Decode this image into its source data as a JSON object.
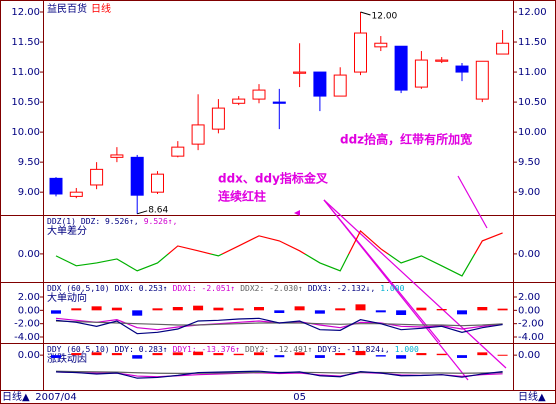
{
  "chart_data": [
    {
      "type": "candlestick",
      "title": "益民百货",
      "subtitle": "日线",
      "categories": [
        "2007/04",
        null,
        null,
        null,
        null,
        null,
        null,
        null,
        null,
        null,
        null,
        null,
        "05",
        null,
        null,
        null,
        null,
        null,
        null,
        null,
        null,
        null,
        null
      ],
      "open": [
        9.23,
        8.93,
        9.12,
        9.58,
        9.58,
        9.0,
        9.6,
        9.8,
        10.05,
        10.48,
        10.55,
        10.5,
        10.98,
        11.0,
        10.6,
        11.0,
        11.42,
        11.43,
        10.75,
        11.18,
        11.1,
        10.55,
        11.3
      ],
      "high": [
        9.25,
        9.07,
        9.5,
        9.75,
        9.62,
        9.35,
        9.85,
        10.63,
        10.55,
        10.6,
        10.8,
        10.72,
        11.48,
        11.0,
        11.08,
        12.0,
        11.6,
        11.43,
        11.35,
        11.25,
        11.15,
        11.18,
        11.7
      ],
      "low": [
        8.93,
        8.9,
        9.05,
        9.5,
        8.64,
        8.97,
        9.58,
        9.7,
        9.98,
        10.45,
        10.48,
        10.05,
        10.75,
        10.35,
        10.6,
        10.95,
        11.35,
        10.65,
        10.72,
        11.15,
        10.85,
        10.5,
        11.3
      ],
      "close": [
        8.97,
        9.0,
        9.38,
        9.62,
        8.95,
        9.3,
        9.75,
        10.12,
        10.4,
        10.55,
        10.7,
        10.48,
        11.0,
        10.6,
        10.95,
        11.65,
        11.48,
        10.7,
        11.2,
        11.2,
        11.0,
        11.18,
        11.48
      ],
      "up_color": "#ff0000",
      "down_color": "#0000ff",
      "high_label": "12.00",
      "low_label": "8.64",
      "ylim": [
        8.62,
        12.15
      ],
      "yticks": [
        {
          "value": 9,
          "label": "9.00"
        },
        {
          "value": 9.5,
          "label": "9.50"
        },
        {
          "value": 10,
          "label": "10.00"
        },
        {
          "value": 10.5,
          "label": "10.50"
        },
        {
          "value": 11,
          "label": "11.00"
        },
        {
          "value": 11.5,
          "label": "11.50"
        },
        {
          "value": 12,
          "label": "12.00"
        }
      ],
      "annotations": [
        "ddz抬高，红带有所加宽",
        "ddx、ddy指标金叉",
        "连续红柱"
      ]
    },
    {
      "type": "line",
      "subtitle": "大单差分",
      "header": [
        {
          "text": "DDZ(1)",
          "color": "#000080"
        },
        {
          "text": "DDZ: 9.526↑,",
          "color": "#000080"
        },
        {
          "text": "9.526↑,",
          "color": "#d000d0"
        }
      ],
      "series": [
        {
          "color": "#ff0000",
          "color_negative": "#00b000",
          "values": [
            -0.9,
            -5.4,
            -4.1,
            -2.3,
            -7.7,
            -4.1,
            3.6,
            1.4,
            -0.9,
            3.6,
            8.2,
            5.9,
            1.4,
            -4.1,
            -7.7,
            10.4,
            2.3,
            -4.1,
            -0.9,
            -5.4,
            -10,
            5.9,
            9.526
          ]
        }
      ],
      "ylim": [
        -12.3,
        17.2
      ],
      "yticks": [
        {
          "value": 0,
          "label": "0.00"
        }
      ]
    },
    {
      "type": "combo",
      "subtitle": "大单动向",
      "header": [
        {
          "text": "DDX (60,5,10)",
          "color": "#000080"
        },
        {
          "text": "DDX: 0.253↑",
          "color": "#000080"
        },
        {
          "text": "DDX1: -2.051↑",
          "color": "#d000d0"
        },
        {
          "text": "DDX2: -2.030↑",
          "color": "#606060"
        },
        {
          "text": "DDX3: -2.132↓,",
          "color": "#000080"
        },
        {
          "text": "1.000",
          "color": "#00b0d0"
        }
      ],
      "bars": {
        "up_color": "#ff0000",
        "down_color": "#0000ff",
        "values": [
          -0.5,
          0.3,
          0.6,
          0.4,
          -0.8,
          0.3,
          0.5,
          0.7,
          0.4,
          0.3,
          0.5,
          -0.4,
          0.6,
          -0.5,
          0.3,
          0.9,
          -0.3,
          -0.7,
          0.4,
          0.2,
          -0.6,
          0.5,
          0.253
        ]
      },
      "series": [
        {
          "color": "#d000d0",
          "values": [
            -1.2,
            -1.5,
            -1.8,
            -1.4,
            -2.6,
            -2.9,
            -2.5,
            -2.2,
            -2.0,
            -1.8,
            -1.6,
            -1.9,
            -1.7,
            -2.2,
            -2.6,
            -1.8,
            -1.9,
            -2.4,
            -2.5,
            -2.3,
            -2.8,
            -2.4,
            -2.051
          ]
        },
        {
          "color": "#606060",
          "values": [
            -1.6,
            -1.7,
            -1.8,
            -1.9,
            -2.0,
            -2.1,
            -2.2,
            -2.2,
            -2.1,
            -2.0,
            -1.9,
            -1.9,
            -1.9,
            -2.0,
            -2.1,
            -2.0,
            -2.0,
            -2.1,
            -2.2,
            -2.2,
            -2.3,
            -2.2,
            -2.03
          ]
        },
        {
          "color": "#000080",
          "values": [
            -1.5,
            -1.8,
            -2.4,
            -1.6,
            -3.5,
            -3.3,
            -2.8,
            -1.6,
            -1.5,
            -1.3,
            -1.2,
            -1.9,
            -1.6,
            -2.9,
            -3.0,
            -1.4,
            -2.0,
            -2.9,
            -2.7,
            -2.4,
            -3.3,
            -2.6,
            -2.132
          ]
        }
      ],
      "ylim": [
        -4.75,
        4.1
      ],
      "yticks": [
        {
          "value": 2,
          "label": "2.00"
        },
        {
          "value": 0,
          "label": "0.00"
        },
        {
          "value": -2,
          "label": "-2.00"
        },
        {
          "value": -4,
          "label": "-4.00"
        }
      ]
    },
    {
      "type": "combo",
      "subtitle": "涨跌动因",
      "header": [
        {
          "text": "DDY (60,5,10)",
          "color": "#000080"
        },
        {
          "text": "DDY: 0.283↑",
          "color": "#000080"
        },
        {
          "text": "DDY1: -13.376↑",
          "color": "#d000d0"
        },
        {
          "text": "DDY2: -12.491↑",
          "color": "#606060"
        },
        {
          "text": "DDY3: -11.824↓,",
          "color": "#000080"
        },
        {
          "text": "1.000",
          "color": "#00b0d0"
        }
      ],
      "bars": {
        "up_color": "#ff0000",
        "down_color": "#0000ff",
        "values": [
          -2,
          1.5,
          2,
          1.5,
          -2.5,
          1.5,
          2,
          2.5,
          1.5,
          1,
          2,
          -1.5,
          2,
          -2,
          1.5,
          3,
          -1,
          -2.5,
          1.5,
          1,
          -2,
          2,
          0.283
        ]
      },
      "series": [
        {
          "color": "#d000d0",
          "values": [
            -12,
            -12.5,
            -13,
            -12.8,
            -15,
            -15.5,
            -14.8,
            -14,
            -13.5,
            -13,
            -12.6,
            -13.2,
            -12.8,
            -14.2,
            -15,
            -12.5,
            -13,
            -14.2,
            -14.5,
            -14,
            -15.2,
            -14,
            -13.376
          ]
        },
        {
          "color": "#606060",
          "values": [
            -11.5,
            -11.8,
            -12,
            -12.2,
            -12.6,
            -13,
            -13.1,
            -13,
            -12.8,
            -12.6,
            -12.4,
            -12.4,
            -12.3,
            -12.5,
            -12.8,
            -12.4,
            -12.4,
            -12.6,
            -12.8,
            -12.8,
            -13,
            -12.8,
            -12.491
          ]
        },
        {
          "color": "#000080",
          "values": [
            -12,
            -12.5,
            -13.5,
            -12.8,
            -16.5,
            -16,
            -14.5,
            -12.5,
            -12.2,
            -11.8,
            -11.5,
            -12.6,
            -12,
            -14.8,
            -15.5,
            -11.8,
            -12.8,
            -14.8,
            -14.6,
            -14,
            -15.8,
            -13.5,
            -11.824
          ]
        }
      ],
      "ylim": [
        -25,
        8
      ],
      "yticks": [
        {
          "value": 0,
          "label": "0.00"
        }
      ]
    }
  ],
  "footer": {
    "left": "日线▲",
    "right": "日线▲"
  }
}
